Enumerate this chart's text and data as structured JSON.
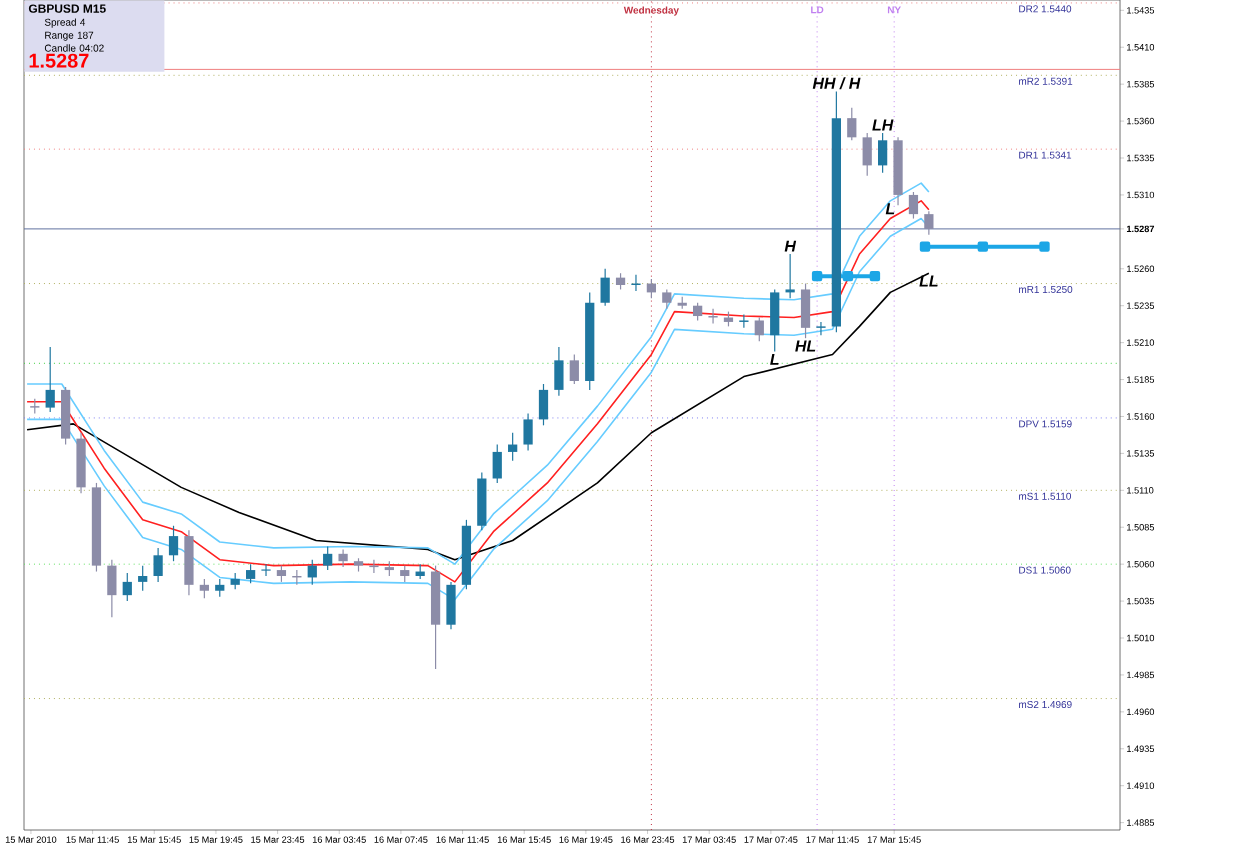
{
  "chart_data": {
    "type": "candlestick",
    "title": "GBPUSD M15",
    "x": [
      "2010-03-15T08:00",
      "2010-03-15T09:00",
      "2010-03-15T10:00",
      "2010-03-15T11:00",
      "2010-03-15T12:00",
      "2010-03-15T13:00",
      "2010-03-15T14:00",
      "2010-03-15T15:00",
      "2010-03-15T16:00",
      "2010-03-15T17:00",
      "2010-03-15T18:00",
      "2010-03-15T19:00",
      "2010-03-15T20:00",
      "2010-03-15T21:00",
      "2010-03-15T22:00",
      "2010-03-15T23:00",
      "2010-03-16T00:00",
      "2010-03-16T01:00",
      "2010-03-16T02:00",
      "2010-03-16T03:00",
      "2010-03-16T04:00",
      "2010-03-16T05:00",
      "2010-03-16T06:00",
      "2010-03-16T07:00",
      "2010-03-16T08:00",
      "2010-03-16T09:00",
      "2010-03-16T10:00",
      "2010-03-16T11:00",
      "2010-03-16T12:00",
      "2010-03-16T13:00",
      "2010-03-16T14:00",
      "2010-03-16T15:00",
      "2010-03-16T16:00",
      "2010-03-16T17:00",
      "2010-03-16T18:00",
      "2010-03-16T19:00",
      "2010-03-16T20:00",
      "2010-03-16T21:00",
      "2010-03-16T22:00",
      "2010-03-16T23:00",
      "2010-03-17T00:00",
      "2010-03-17T01:00",
      "2010-03-17T02:00",
      "2010-03-17T03:00",
      "2010-03-17T04:00",
      "2010-03-17T05:00",
      "2010-03-17T06:00",
      "2010-03-17T07:00",
      "2010-03-17T08:00",
      "2010-03-17T09:00",
      "2010-03-17T10:00",
      "2010-03-17T11:00",
      "2010-03-17T12:00",
      "2010-03-17T13:00",
      "2010-03-17T14:00",
      "2010-03-17T15:00",
      "2010-03-17T16:00",
      "2010-03-17T17:00",
      "2010-03-17T18:00"
    ],
    "ohlc": [
      [
        1.5167,
        1.5172,
        1.5162,
        1.5166
      ],
      [
        1.5166,
        1.5207,
        1.5163,
        1.5178
      ],
      [
        1.5178,
        1.518,
        1.5141,
        1.5145
      ],
      [
        1.5145,
        1.5149,
        1.5108,
        1.5112
      ],
      [
        1.5112,
        1.5115,
        1.5055,
        1.5059
      ],
      [
        1.5059,
        1.5063,
        1.5024,
        1.5039
      ],
      [
        1.5039,
        1.5054,
        1.5035,
        1.5048
      ],
      [
        1.5048,
        1.5059,
        1.5042,
        1.5052
      ],
      [
        1.5052,
        1.5071,
        1.5048,
        1.5066
      ],
      [
        1.5066,
        1.5086,
        1.5062,
        1.5079
      ],
      [
        1.5079,
        1.5083,
        1.5039,
        1.5046
      ],
      [
        1.5046,
        1.505,
        1.5037,
        1.5042
      ],
      [
        1.5042,
        1.505,
        1.5038,
        1.5046
      ],
      [
        1.5046,
        1.5054,
        1.5043,
        1.505
      ],
      [
        1.505,
        1.506,
        1.5047,
        1.5056
      ],
      [
        1.5056,
        1.506,
        1.5052,
        1.5056
      ],
      [
        1.5056,
        1.5059,
        1.5048,
        1.5052
      ],
      [
        1.5052,
        1.5056,
        1.5046,
        1.5051
      ],
      [
        1.5051,
        1.5063,
        1.5046,
        1.5059
      ],
      [
        1.5059,
        1.5072,
        1.5056,
        1.5067
      ],
      [
        1.5067,
        1.507,
        1.5058,
        1.5062
      ],
      [
        1.5062,
        1.5064,
        1.5055,
        1.5059
      ],
      [
        1.5059,
        1.5063,
        1.5054,
        1.5058
      ],
      [
        1.5058,
        1.5062,
        1.5052,
        1.5056
      ],
      [
        1.5056,
        1.5059,
        1.5048,
        1.5052
      ],
      [
        1.5052,
        1.506,
        1.505,
        1.5055
      ],
      [
        1.5055,
        1.5059,
        1.4989,
        1.5019
      ],
      [
        1.5019,
        1.5048,
        1.5016,
        1.5046
      ],
      [
        1.5046,
        1.509,
        1.5043,
        1.5086
      ],
      [
        1.5086,
        1.5122,
        1.5083,
        1.5118
      ],
      [
        1.5118,
        1.5141,
        1.5115,
        1.5136
      ],
      [
        1.5136,
        1.5149,
        1.513,
        1.5141
      ],
      [
        1.5141,
        1.5162,
        1.5137,
        1.5158
      ],
      [
        1.5158,
        1.5182,
        1.5154,
        1.5178
      ],
      [
        1.5178,
        1.5207,
        1.5174,
        1.5198
      ],
      [
        1.5198,
        1.5202,
        1.5182,
        1.5184
      ],
      [
        1.5184,
        1.5244,
        1.5178,
        1.5237
      ],
      [
        1.5237,
        1.526,
        1.5235,
        1.5254
      ],
      [
        1.5254,
        1.5257,
        1.5246,
        1.5249
      ],
      [
        1.5249,
        1.5256,
        1.5245,
        1.525
      ],
      [
        1.525,
        1.5253,
        1.524,
        1.5244
      ],
      [
        1.5244,
        1.5246,
        1.5233,
        1.5237
      ],
      [
        1.5237,
        1.5241,
        1.5233,
        1.5235
      ],
      [
        1.5235,
        1.5237,
        1.5225,
        1.5228
      ],
      [
        1.5228,
        1.5233,
        1.5223,
        1.5227
      ],
      [
        1.5227,
        1.5231,
        1.5221,
        1.5224
      ],
      [
        1.5224,
        1.5229,
        1.522,
        1.5225
      ],
      [
        1.5225,
        1.5227,
        1.5211,
        1.5215
      ],
      [
        1.5215,
        1.5246,
        1.5204,
        1.5244
      ],
      [
        1.5244,
        1.527,
        1.524,
        1.5246
      ],
      [
        1.5246,
        1.525,
        1.5213,
        1.522
      ],
      [
        1.522,
        1.5224,
        1.5215,
        1.5221
      ],
      [
        1.5221,
        1.538,
        1.5217,
        1.5362
      ],
      [
        1.5362,
        1.5369,
        1.5347,
        1.5349
      ],
      [
        1.5349,
        1.5352,
        1.5323,
        1.533
      ],
      [
        1.533,
        1.5352,
        1.5325,
        1.5347
      ],
      [
        1.5347,
        1.5349,
        1.5303,
        1.531
      ],
      [
        1.531,
        1.5312,
        1.5294,
        1.5297
      ],
      [
        1.5297,
        1.5299,
        1.5283,
        1.5287
      ]
    ],
    "series": [
      {
        "type": "line",
        "color": "#000000",
        "x": [
          "2010-03-15T07:30",
          "2010-03-15T10:30",
          "2010-03-15T17:30",
          "2010-03-15T21:15",
          "2010-03-16T02:15",
          "2010-03-16T09:30",
          "2010-03-16T11:15",
          "2010-03-16T15:00",
          "2010-03-16T20:30",
          "2010-03-17T00:00",
          "2010-03-17T06:00",
          "2010-03-17T11:45",
          "2010-03-17T13:30",
          "2010-03-17T15:30",
          "2010-03-17T18:00"
        ],
        "values": [
          1.5151,
          1.5155,
          1.5112,
          1.5095,
          1.5076,
          1.507,
          1.5063,
          1.5076,
          1.5115,
          1.5149,
          1.5187,
          1.5202,
          1.5221,
          1.5244,
          1.5257
        ]
      },
      {
        "type": "line",
        "color": "#66ccff",
        "x": [
          "2010-03-15T07:30",
          "2010-03-15T09:45",
          "2010-03-15T12:30",
          "2010-03-15T15:00",
          "2010-03-15T17:30",
          "2010-03-15T20:00",
          "2010-03-15T23:30",
          "2010-03-16T04:30",
          "2010-03-16T09:30",
          "2010-03-16T11:15",
          "2010-03-16T13:45",
          "2010-03-16T17:15",
          "2010-03-16T20:30",
          "2010-03-17T00:00",
          "2010-03-17T01:30",
          "2010-03-17T06:00",
          "2010-03-17T09:15",
          "2010-03-17T11:45",
          "2010-03-17T13:30",
          "2010-03-17T15:30",
          "2010-03-17T17:30",
          "2010-03-17T18:00"
        ],
        "values": [
          1.5182,
          1.5182,
          1.5137,
          1.5102,
          1.5094,
          1.5075,
          1.5071,
          1.5072,
          1.5071,
          1.506,
          1.5094,
          1.5127,
          1.5167,
          1.5214,
          1.5243,
          1.524,
          1.5239,
          1.5243,
          1.5282,
          1.5306,
          1.5318,
          1.5312
        ]
      },
      {
        "type": "line",
        "color": "#ff2020",
        "x": [
          "2010-03-15T07:30",
          "2010-03-15T09:45",
          "2010-03-15T12:30",
          "2010-03-15T15:00",
          "2010-03-15T17:30",
          "2010-03-15T20:00",
          "2010-03-15T23:30",
          "2010-03-16T04:30",
          "2010-03-16T09:30",
          "2010-03-16T11:15",
          "2010-03-16T13:45",
          "2010-03-16T17:15",
          "2010-03-16T20:30",
          "2010-03-17T00:00",
          "2010-03-17T01:30",
          "2010-03-17T06:00",
          "2010-03-17T09:15",
          "2010-03-17T11:45",
          "2010-03-17T13:30",
          "2010-03-17T15:30",
          "2010-03-17T17:30",
          "2010-03-17T18:00"
        ],
        "values": [
          1.517,
          1.517,
          1.5125,
          1.509,
          1.5082,
          1.5063,
          1.5059,
          1.506,
          1.5059,
          1.5048,
          1.5082,
          1.5115,
          1.5155,
          1.5202,
          1.5231,
          1.5228,
          1.5227,
          1.5231,
          1.527,
          1.5294,
          1.5306,
          1.53
        ]
      },
      {
        "type": "line",
        "color": "#66ccff",
        "x": [
          "2010-03-15T07:30",
          "2010-03-15T09:45",
          "2010-03-15T12:30",
          "2010-03-15T15:00",
          "2010-03-15T17:30",
          "2010-03-15T20:00",
          "2010-03-15T23:30",
          "2010-03-16T04:30",
          "2010-03-16T09:30",
          "2010-03-16T11:15",
          "2010-03-16T13:45",
          "2010-03-16T17:15",
          "2010-03-16T20:30",
          "2010-03-17T00:00",
          "2010-03-17T01:30",
          "2010-03-17T06:00",
          "2010-03-17T09:15",
          "2010-03-17T11:45",
          "2010-03-17T13:30",
          "2010-03-17T15:30",
          "2010-03-17T17:30",
          "2010-03-17T18:00"
        ],
        "values": [
          1.5158,
          1.5158,
          1.5113,
          1.5078,
          1.507,
          1.5051,
          1.5047,
          1.5048,
          1.5047,
          1.5036,
          1.507,
          1.5103,
          1.5143,
          1.519,
          1.5219,
          1.5216,
          1.5215,
          1.5219,
          1.5258,
          1.5282,
          1.5294,
          1.5288
        ]
      },
      {
        "type": "line",
        "color": "#1ca6e6",
        "marker": "square",
        "x": [
          "2010-03-17T10:45",
          "2010-03-17T12:45",
          "2010-03-17T14:30"
        ],
        "values": [
          1.5255,
          1.5255,
          1.5255
        ]
      },
      {
        "type": "line",
        "color": "#1ca6e6",
        "marker": "square",
        "x": [
          "2010-03-17T17:45",
          "2010-03-17T21:30",
          "2010-03-18T01:30"
        ],
        "values": [
          1.5275,
          1.5275,
          1.5275
        ]
      }
    ],
    "xlim": [
      "2010-03-15T07:18",
      "2010-03-18T06:24"
    ],
    "ylim": [
      1.488,
      1.5442
    ],
    "xticks": [
      {
        "value": "2010-03-15T07:45",
        "label": "15 Mar 2010"
      },
      {
        "value": "2010-03-15T11:45",
        "label": "15 Mar 11:45"
      },
      {
        "value": "2010-03-15T15:45",
        "label": "15 Mar 15:45"
      },
      {
        "value": "2010-03-15T19:45",
        "label": "15 Mar 19:45"
      },
      {
        "value": "2010-03-15T23:45",
        "label": "15 Mar 23:45"
      },
      {
        "value": "2010-03-16T03:45",
        "label": "16 Mar 03:45"
      },
      {
        "value": "2010-03-16T07:45",
        "label": "16 Mar 07:45"
      },
      {
        "value": "2010-03-16T11:45",
        "label": "16 Mar 11:45"
      },
      {
        "value": "2010-03-16T15:45",
        "label": "16 Mar 15:45"
      },
      {
        "value": "2010-03-16T19:45",
        "label": "16 Mar 19:45"
      },
      {
        "value": "2010-03-16T23:45",
        "label": "16 Mar 23:45"
      },
      {
        "value": "2010-03-17T03:45",
        "label": "17 Mar 03:45"
      },
      {
        "value": "2010-03-17T07:45",
        "label": "17 Mar 07:45"
      },
      {
        "value": "2010-03-17T11:45",
        "label": "17 Mar 11:45"
      },
      {
        "value": "2010-03-17T15:45",
        "label": "17 Mar 15:45"
      }
    ],
    "yticks": [
      1.5435,
      {
        "value": 1.541,
        "label": "1.5410"
      },
      1.5385,
      {
        "value": 1.536,
        "label": "1.5360"
      },
      1.5335,
      {
        "value": 1.531,
        "label": "1.5310"
      },
      1.5287,
      {
        "value": 1.526,
        "label": "1.5260"
      },
      1.5235,
      {
        "value": 1.521,
        "label": "1.5210"
      },
      1.5185,
      {
        "value": 1.516,
        "label": "1.5160"
      },
      1.5135,
      {
        "value": 1.511,
        "label": "1.5110"
      },
      1.5085,
      {
        "value": 1.506,
        "label": "1.5060"
      },
      1.5035,
      {
        "value": 1.501,
        "label": "1.5010"
      },
      1.4985,
      {
        "value": 1.496,
        "label": "1.4960"
      },
      1.4935,
      {
        "value": 1.491,
        "label": "1.4910"
      },
      1.4885
    ],
    "ref_lines": [
      {
        "axis": "y",
        "value": 1.544,
        "label": "DR2 1.5440",
        "color": "#f08080",
        "line_style": "dotted"
      },
      {
        "axis": "y",
        "value": 1.5395,
        "color": "#f08080",
        "line_style": "solid"
      },
      {
        "axis": "y",
        "value": 1.5391,
        "label": "mR2 1.5391",
        "color": "#b0b060",
        "line_style": "dotted"
      },
      {
        "axis": "y",
        "value": 1.5341,
        "label": "DR1 1.5341",
        "color": "#f08080",
        "line_style": "dotted"
      },
      {
        "axis": "y",
        "value": 1.5287,
        "color": "#6070a0",
        "line_style": "solid"
      },
      {
        "axis": "y",
        "value": 1.525,
        "label": "mR1 1.5250",
        "color": "#b0b060",
        "line_style": "dotted"
      },
      {
        "axis": "y",
        "value": 1.5196,
        "color": "#40d040",
        "line_style": "dotted"
      },
      {
        "axis": "y",
        "value": 1.5159,
        "label": "DPV 1.5159",
        "color": "#8080f0",
        "line_style": "dotted"
      },
      {
        "axis": "y",
        "value": 1.511,
        "label": "mS1 1.5110",
        "color": "#b0b060",
        "line_style": "dotted"
      },
      {
        "axis": "y",
        "value": 1.506,
        "label": "DS1 1.5060",
        "color": "#60e060",
        "line_style": "dotted"
      },
      {
        "axis": "y",
        "value": 1.4969,
        "label": "mS2 1.4969",
        "color": "#b0b060",
        "line_style": "dotted"
      },
      {
        "axis": "x",
        "value": "2010-03-17T00:00",
        "label": "Wednesday",
        "color": "#c03040",
        "line_style": "dotted"
      },
      {
        "axis": "x",
        "value": "2010-03-17T10:45",
        "label": "LD",
        "color": "#c080f0",
        "line_style": "dotted"
      },
      {
        "axis": "x",
        "value": "2010-03-17T15:45",
        "label": "NY",
        "color": "#c080f0",
        "line_style": "dotted"
      }
    ],
    "annotations": [
      "Spread 4",
      "Range 187",
      "Candle 04:02",
      "1.5287",
      {
        "text": "HH / H",
        "x": "2010-03-17T12:00",
        "y": 1.538
      },
      {
        "text": "LH",
        "x": "2010-03-17T15:00",
        "y": 1.5352
      },
      {
        "text": "H",
        "x": "2010-03-17T09:00",
        "y": 1.527
      },
      {
        "text": "L",
        "x": "2010-03-17T08:00",
        "y": 1.5204
      },
      {
        "text": "HL",
        "x": "2010-03-17T10:00",
        "y": 1.5213
      },
      {
        "text": "L",
        "x": "2010-03-17T15:30",
        "y": 1.5306
      },
      {
        "text": "LL",
        "x": "2010-03-17T18:00",
        "y": 1.5257
      }
    ]
  }
}
